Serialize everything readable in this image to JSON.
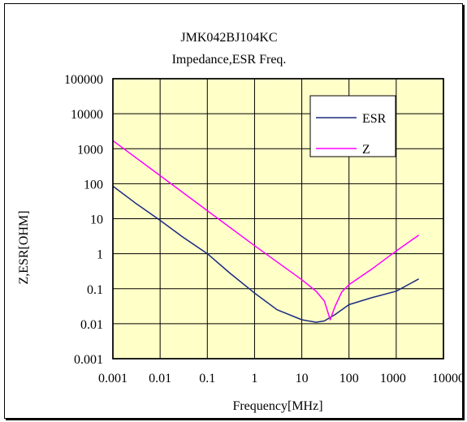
{
  "chart_data": {
    "type": "line",
    "title_line1": "JMK042BJ104KC",
    "title_line2": "Impedance,ESR Freq.",
    "xlabel": "Frequency[MHz]",
    "ylabel": "Z,ESR[OHM]",
    "x_scale": "log",
    "y_scale": "log",
    "xlim": [
      0.001,
      10000
    ],
    "ylim": [
      0.001,
      100000
    ],
    "x_ticks": [
      0.001,
      0.01,
      0.1,
      1,
      10,
      100,
      1000,
      10000
    ],
    "x_tick_labels": [
      "0.001",
      "0.01",
      "0.1",
      "1",
      "10",
      "100",
      "1000",
      "10000"
    ],
    "y_ticks": [
      0.001,
      0.01,
      0.1,
      1,
      10,
      100,
      1000,
      10000,
      100000
    ],
    "y_tick_labels": [
      "0.001",
      "0.01",
      "0.1",
      "1",
      "10",
      "100",
      "1000",
      "10000",
      "100000"
    ],
    "grid": true,
    "legend_position": "top-right",
    "plot_background": "#ffffc8",
    "series": [
      {
        "name": "ESR",
        "color": "#1a2a80",
        "x": [
          0.001,
          0.003,
          0.01,
          0.03,
          0.1,
          0.3,
          1,
          3,
          10,
          20,
          30,
          50,
          100,
          300,
          1000,
          3000
        ],
        "y": [
          85,
          28,
          9,
          3,
          1.0,
          0.28,
          0.075,
          0.025,
          0.013,
          0.011,
          0.012,
          0.018,
          0.035,
          0.055,
          0.085,
          0.19
        ]
      },
      {
        "name": "Z",
        "color": "#ff00ff",
        "x": [
          0.001,
          0.01,
          0.1,
          1,
          10,
          20,
          30,
          40,
          50,
          70,
          100,
          300,
          1000,
          3000
        ],
        "y": [
          1700,
          170,
          17,
          1.7,
          0.18,
          0.085,
          0.045,
          0.013,
          0.03,
          0.08,
          0.13,
          0.36,
          1.2,
          3.4
        ]
      }
    ]
  }
}
